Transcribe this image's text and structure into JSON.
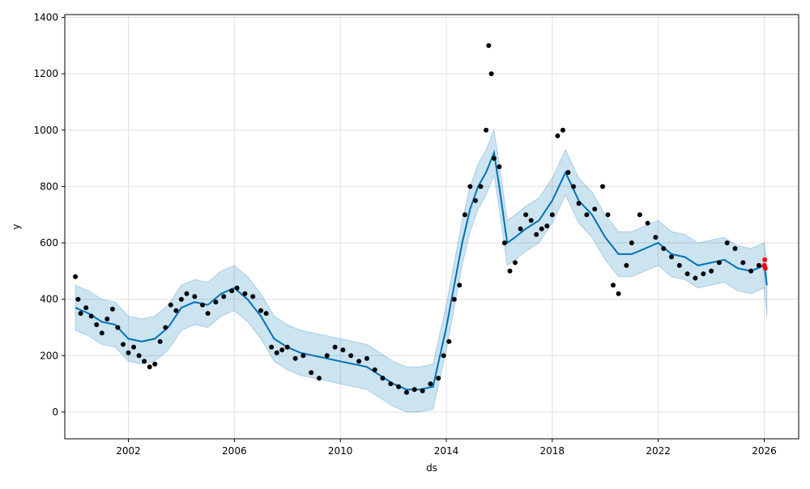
{
  "chart_data": {
    "type": "line",
    "title": "",
    "xlabel": "ds",
    "ylabel": "y",
    "x_unit": "year",
    "xlim": [
      1999.6,
      2027.3
    ],
    "ylim": [
      -95,
      1410
    ],
    "x_ticks": [
      2002,
      2006,
      2010,
      2014,
      2018,
      2022,
      2026
    ],
    "x_tick_labels": [
      "2002",
      "2006",
      "2010",
      "2014",
      "2018",
      "2022",
      "2026"
    ],
    "y_ticks": [
      0,
      200,
      400,
      600,
      800,
      1000,
      1200,
      1400
    ],
    "y_tick_labels": [
      "0",
      "200",
      "400",
      "600",
      "800",
      "1000",
      "1200",
      "1400"
    ],
    "grid": true,
    "colors": {
      "observed": "#000000",
      "forecast_line": "#0072B2",
      "uncertainty_band": "#0072B2",
      "highlight_points": "#ff0000"
    },
    "series": [
      {
        "role": "observed",
        "style": "points",
        "x": [
          2000.0,
          2000.1,
          2000.2,
          2000.4,
          2000.6,
          2000.8,
          2001.0,
          2001.2,
          2001.4,
          2001.6,
          2001.8,
          2002.0,
          2002.2,
          2002.4,
          2002.6,
          2002.8,
          2003.0,
          2003.2,
          2003.4,
          2003.6,
          2003.8,
          2004.0,
          2004.2,
          2004.5,
          2004.8,
          2005.0,
          2005.3,
          2005.6,
          2005.9,
          2006.1,
          2006.4,
          2006.7,
          2007.0,
          2007.2,
          2007.4,
          2007.6,
          2007.8,
          2008.0,
          2008.3,
          2008.6,
          2008.9,
          2009.2,
          2009.5,
          2009.8,
          2010.1,
          2010.4,
          2010.7,
          2011.0,
          2011.3,
          2011.6,
          2011.9,
          2012.2,
          2012.5,
          2012.8,
          2013.1,
          2013.4,
          2013.7,
          2013.9,
          2014.1,
          2014.3,
          2014.5,
          2014.7,
          2014.9,
          2015.1,
          2015.3,
          2015.5,
          2015.6,
          2015.7,
          2015.8,
          2016.0,
          2016.2,
          2016.4,
          2016.6,
          2016.8,
          2017.0,
          2017.2,
          2017.4,
          2017.6,
          2017.8,
          2018.0,
          2018.2,
          2018.4,
          2018.6,
          2018.8,
          2019.0,
          2019.3,
          2019.6,
          2019.9,
          2020.1,
          2020.3,
          2020.5,
          2020.8,
          2021.0,
          2021.3,
          2021.6,
          2021.9,
          2022.2,
          2022.5,
          2022.8,
          2023.1,
          2023.4,
          2023.7,
          2024.0,
          2024.3,
          2024.6,
          2024.9,
          2025.2,
          2025.5,
          2025.8
        ],
        "y": [
          480,
          400,
          350,
          370,
          340,
          310,
          280,
          330,
          365,
          300,
          240,
          210,
          230,
          200,
          180,
          160,
          170,
          250,
          300,
          380,
          360,
          400,
          420,
          410,
          380,
          350,
          390,
          410,
          430,
          440,
          420,
          410,
          360,
          350,
          230,
          210,
          220,
          230,
          190,
          200,
          140,
          120,
          200,
          230,
          220,
          200,
          180,
          190,
          150,
          120,
          100,
          90,
          70,
          80,
          75,
          100,
          120,
          200,
          250,
          400,
          450,
          700,
          800,
          750,
          800,
          1000,
          1300,
          1200,
          900,
          870,
          600,
          500,
          530,
          650,
          700,
          680,
          630,
          650,
          660,
          700,
          980,
          1000,
          850,
          800,
          740,
          700,
          720,
          800,
          700,
          450,
          420,
          520,
          600,
          700,
          670,
          620,
          580,
          550,
          520,
          490,
          475,
          490,
          500,
          530,
          600,
          580,
          530,
          500,
          520
        ]
      },
      {
        "role": "forecast",
        "style": "line",
        "x": [
          2000.0,
          2000.5,
          2001.0,
          2001.5,
          2002.0,
          2002.5,
          2003.0,
          2003.5,
          2004.0,
          2004.5,
          2005.0,
          2005.5,
          2006.0,
          2006.5,
          2007.0,
          2007.5,
          2008.0,
          2008.5,
          2009.0,
          2009.5,
          2010.0,
          2010.5,
          2011.0,
          2011.5,
          2012.0,
          2012.5,
          2013.0,
          2013.5,
          2014.0,
          2014.3,
          2014.6,
          2014.9,
          2015.2,
          2015.5,
          2015.8,
          2016.0,
          2016.3,
          2016.6,
          2017.0,
          2017.5,
          2018.0,
          2018.5,
          2019.0,
          2019.5,
          2020.0,
          2020.5,
          2021.0,
          2021.5,
          2022.0,
          2022.5,
          2023.0,
          2023.5,
          2024.0,
          2024.5,
          2025.0,
          2025.5,
          2026.0,
          2026.1
        ],
        "y": [
          370,
          350,
          320,
          310,
          260,
          250,
          260,
          300,
          370,
          390,
          380,
          420,
          440,
          400,
          340,
          260,
          230,
          210,
          200,
          190,
          180,
          170,
          160,
          130,
          100,
          80,
          80,
          90,
          300,
          450,
          600,
          720,
          800,
          850,
          920,
          800,
          600,
          620,
          650,
          680,
          750,
          850,
          750,
          700,
          620,
          560,
          560,
          580,
          600,
          560,
          550,
          520,
          530,
          540,
          510,
          500,
          520,
          450
        ]
      },
      {
        "role": "uncertainty_upper",
        "style": "band-edge",
        "x": [
          2000.0,
          2000.5,
          2001.0,
          2001.5,
          2002.0,
          2002.5,
          2003.0,
          2003.5,
          2004.0,
          2004.5,
          2005.0,
          2005.5,
          2006.0,
          2006.5,
          2007.0,
          2007.5,
          2008.0,
          2008.5,
          2009.0,
          2009.5,
          2010.0,
          2010.5,
          2011.0,
          2011.5,
          2012.0,
          2012.5,
          2013.0,
          2013.5,
          2014.0,
          2014.3,
          2014.6,
          2014.9,
          2015.2,
          2015.5,
          2015.8,
          2016.0,
          2016.3,
          2016.6,
          2017.0,
          2017.5,
          2018.0,
          2018.5,
          2019.0,
          2019.5,
          2020.0,
          2020.5,
          2021.0,
          2021.5,
          2022.0,
          2022.5,
          2023.0,
          2023.5,
          2024.0,
          2024.5,
          2025.0,
          2025.5,
          2026.0,
          2026.1
        ],
        "y": [
          450,
          430,
          400,
          390,
          340,
          330,
          340,
          380,
          450,
          470,
          460,
          500,
          520,
          480,
          420,
          340,
          310,
          290,
          280,
          270,
          260,
          250,
          240,
          210,
          180,
          160,
          160,
          170,
          380,
          530,
          680,
          800,
          880,
          930,
          1000,
          880,
          680,
          700,
          730,
          760,
          830,
          930,
          830,
          780,
          700,
          640,
          640,
          660,
          680,
          640,
          630,
          600,
          610,
          620,
          590,
          580,
          600,
          530
        ]
      },
      {
        "role": "uncertainty_lower",
        "style": "band-edge",
        "x": [
          2000.0,
          2000.5,
          2001.0,
          2001.5,
          2002.0,
          2002.5,
          2003.0,
          2003.5,
          2004.0,
          2004.5,
          2005.0,
          2005.5,
          2006.0,
          2006.5,
          2007.0,
          2007.5,
          2008.0,
          2008.5,
          2009.0,
          2009.5,
          2010.0,
          2010.5,
          2011.0,
          2011.5,
          2012.0,
          2012.5,
          2013.0,
          2013.5,
          2014.0,
          2014.3,
          2014.6,
          2014.9,
          2015.2,
          2015.5,
          2015.8,
          2016.0,
          2016.3,
          2016.6,
          2017.0,
          2017.5,
          2018.0,
          2018.5,
          2019.0,
          2019.5,
          2020.0,
          2020.5,
          2021.0,
          2021.5,
          2022.0,
          2022.5,
          2023.0,
          2023.5,
          2024.0,
          2024.5,
          2025.0,
          2025.5,
          2026.0,
          2026.1
        ],
        "y": [
          290,
          270,
          240,
          230,
          180,
          170,
          180,
          220,
          290,
          310,
          300,
          340,
          360,
          320,
          260,
          180,
          150,
          130,
          120,
          110,
          100,
          90,
          80,
          50,
          20,
          0,
          0,
          10,
          220,
          370,
          520,
          640,
          720,
          770,
          840,
          720,
          520,
          540,
          570,
          600,
          670,
          770,
          670,
          620,
          540,
          480,
          480,
          500,
          520,
          480,
          470,
          440,
          450,
          460,
          430,
          420,
          440,
          340
        ]
      },
      {
        "role": "highlight",
        "style": "points",
        "x": [
          2026.0,
          2026.02,
          2026.04
        ],
        "y": [
          520,
          540,
          510
        ]
      }
    ]
  }
}
